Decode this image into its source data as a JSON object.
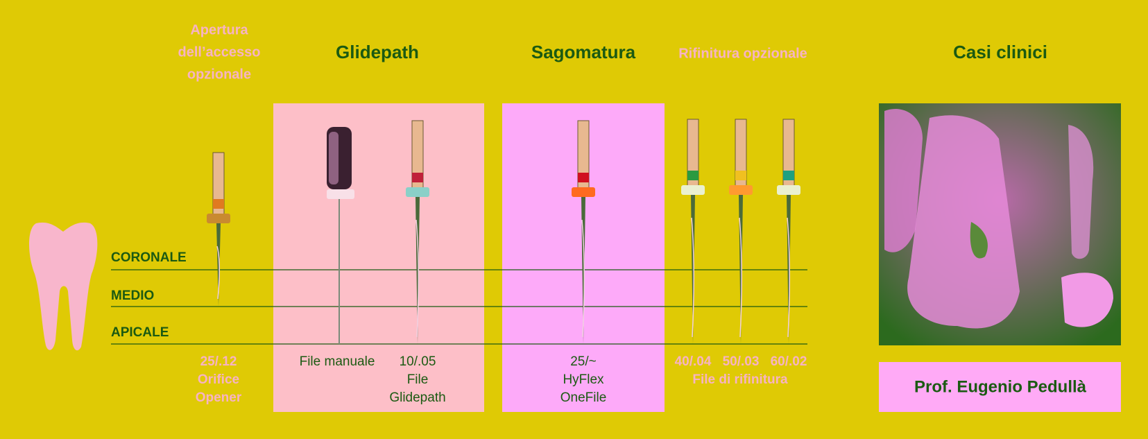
{
  "headers": {
    "access": [
      "Apertura",
      "dell’accesso",
      "opzionale"
    ],
    "glidepath": "Glidepath",
    "shaping": "Sagomatura",
    "finishing": "Rifinitura opzionale",
    "cases": "Casi clinici"
  },
  "levels": [
    "CORONALE",
    "MEDIO",
    "APICALE"
  ],
  "files": {
    "opener": [
      "25/.12",
      "Orifice",
      "Opener"
    ],
    "manual": "File manuale",
    "glide": [
      "10/.05",
      "File",
      "Glidepath"
    ],
    "hyflex": [
      "25/~",
      "HyFlex",
      "OneFile"
    ],
    "finishing": {
      "sizes": [
        "40/.04",
        "50/.03",
        "60/.02"
      ],
      "label": "File di rifinitura"
    }
  },
  "author": "Prof. Eugenio Pedullà"
}
